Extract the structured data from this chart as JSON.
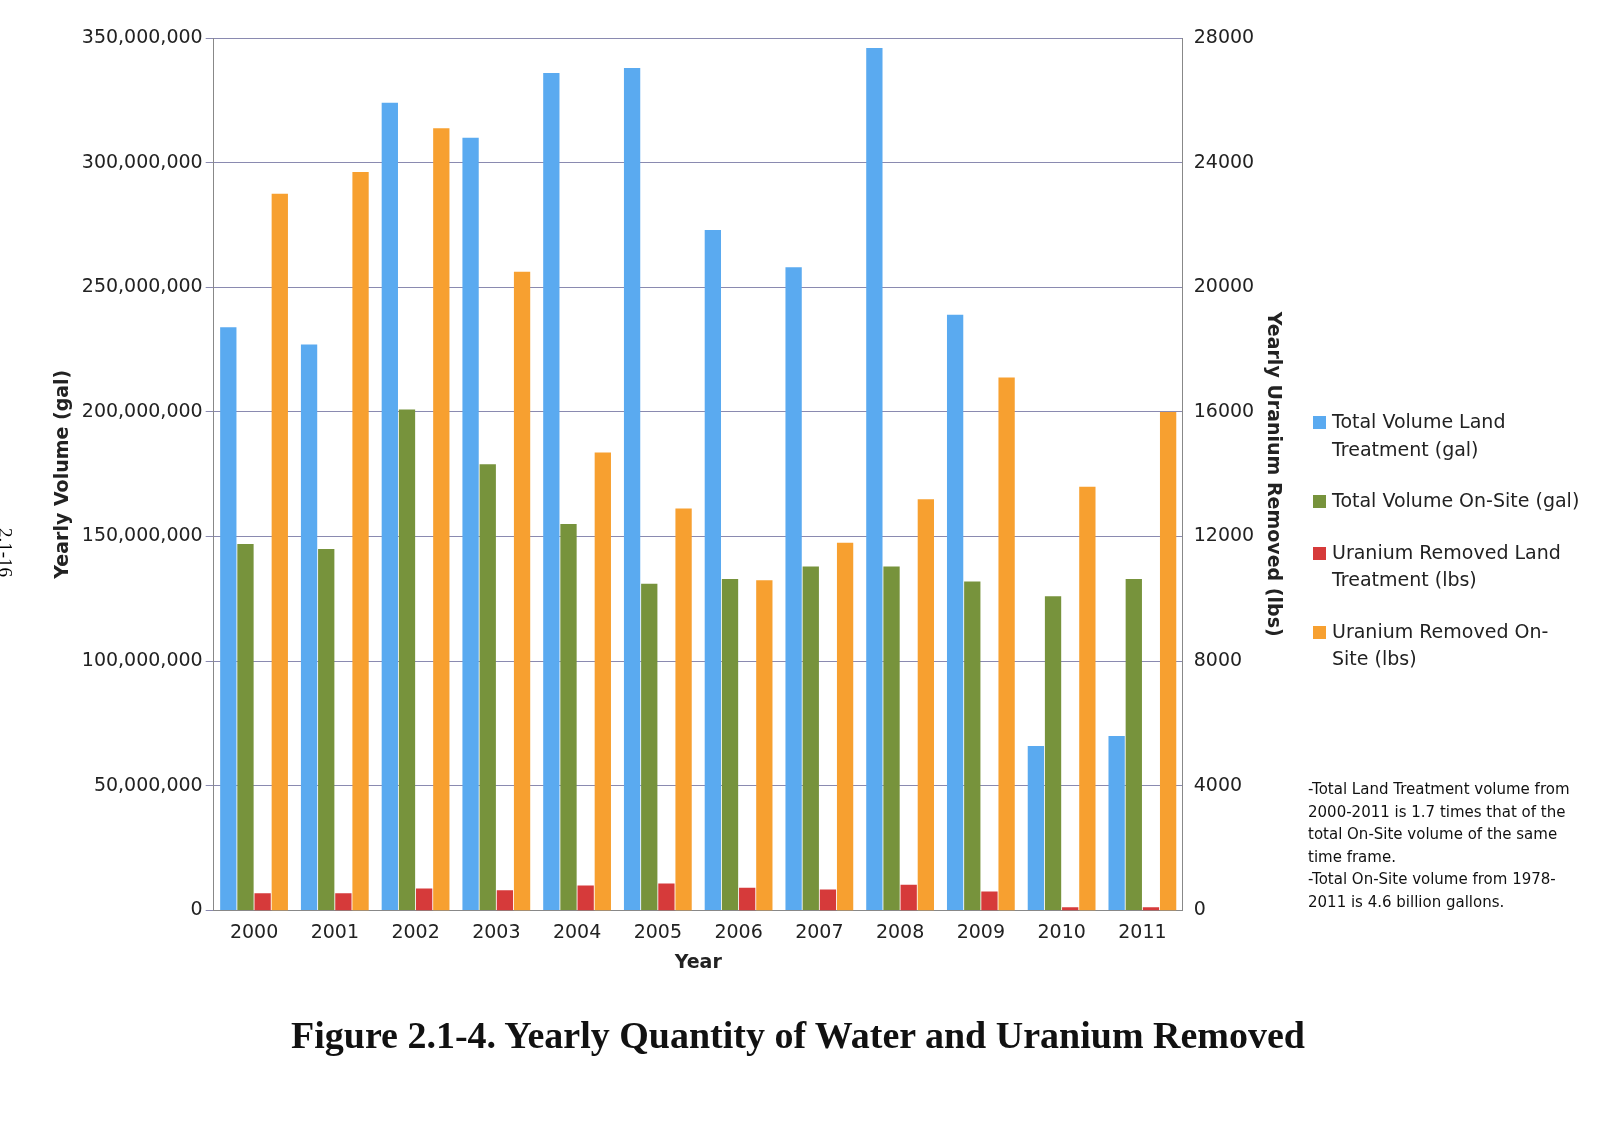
{
  "chart_data": {
    "type": "bar",
    "title": "Figure 2.1-4. Yearly Quantity of Water and Uranium Removed",
    "xlabel": "Year",
    "ylabel": "Yearly Volume (gal)",
    "y2label": "Yearly Uranium Removed (lbs)",
    "categories": [
      "2000",
      "2001",
      "2002",
      "2003",
      "2004",
      "2005",
      "2006",
      "2007",
      "2008",
      "2009",
      "2010",
      "2011"
    ],
    "series": [
      {
        "name": "Total Volume Land Treatment (gal)",
        "color": "#5aaaf0",
        "values": [
          234000000,
          227000000,
          324000000,
          310000000,
          336000000,
          338000000,
          273000000,
          258000000,
          346000000,
          239000000,
          66000000,
          70000000
        ]
      },
      {
        "name": "Total Volume On-Site (gal)",
        "color": "#77933c",
        "values": [
          147000000,
          145000000,
          201000000,
          179000000,
          155000000,
          131000000,
          133000000,
          138000000,
          138000000,
          132000000,
          126000000,
          133000000
        ]
      },
      {
        "name": "Uranium Removed Land Treatment (lbs)",
        "color": "#d63a3a",
        "axis": "y2",
        "values": [
          550,
          550,
          700,
          650,
          800,
          860,
          730,
          670,
          820,
          610,
          100,
          100
        ]
      },
      {
        "name": "Uranium Removed On-Site (lbs)",
        "color": "#f7a030",
        "axis": "y2",
        "values": [
          23000,
          23700,
          25100,
          20500,
          14700,
          12900,
          10600,
          11800,
          13200,
          17100,
          13600,
          16000
        ]
      }
    ],
    "ylim": [
      0,
      350000000
    ],
    "yticks": [
      0,
      {
        "value": 50000000,
        "label": "50,000,000"
      },
      {
        "value": 100000000,
        "label": "100,000,000"
      },
      {
        "value": 150000000,
        "label": "150,000,000"
      },
      {
        "value": 200000000,
        "label": "200,000,000"
      },
      {
        "value": 250000000,
        "label": "250,000,000"
      },
      {
        "value": 300000000,
        "label": "300,000,000"
      },
      {
        "value": 350000000,
        "label": "350,000,000"
      }
    ],
    "y2lim": [
      0,
      28000
    ],
    "y2ticks": [
      0,
      4000,
      8000,
      12000,
      16000,
      20000,
      24000,
      28000
    ],
    "grid": "y",
    "legend": "right",
    "annotations": [
      "2.1-16",
      "-Total Land Treatment volume from 2000-2011 is 1.7 times that of the total On-Site volume of the same time frame.",
      "-Total On-Site volume from 1978-2011 is 4.6 billion gallons."
    ]
  }
}
